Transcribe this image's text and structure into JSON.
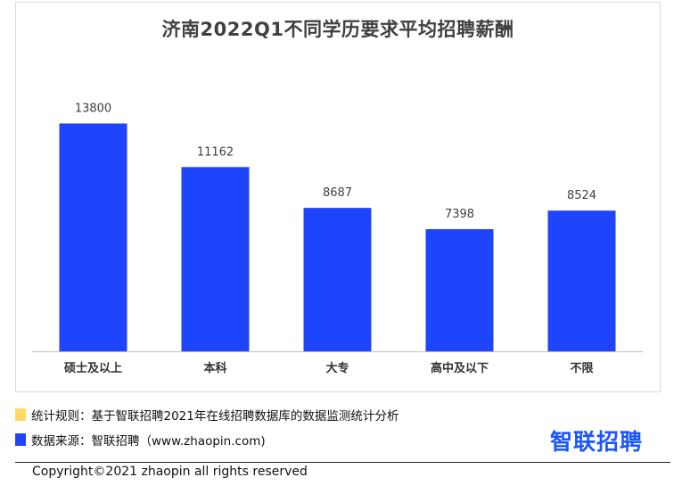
{
  "chart_data": {
    "type": "bar",
    "title": "济南2022Q1不同学历要求平均招聘薪酬",
    "categories": [
      "硕士及以上",
      "本科",
      "大专",
      "高中及以下",
      "不限"
    ],
    "values": [
      13800,
      11162,
      8687,
      7398,
      8524
    ],
    "xlabel": "",
    "ylabel": "",
    "ylim": [
      0,
      15500
    ],
    "grid": false,
    "legend": "none",
    "bar_color": "#1f45fc"
  },
  "notes": {
    "rule": "统计规则：基于智联招聘2021年在线招聘数据库的数据监测统计分析",
    "source": "数据来源：智联招聘（www.zhaopin.com)",
    "rule_color": "#ffd966",
    "source_color": "#1f45fc"
  },
  "brand": {
    "logo_text": "智联招聘",
    "color": "#1a56ff"
  },
  "footer": {
    "copyright": "Copyright©2021 zhaopin all rights reserved"
  }
}
